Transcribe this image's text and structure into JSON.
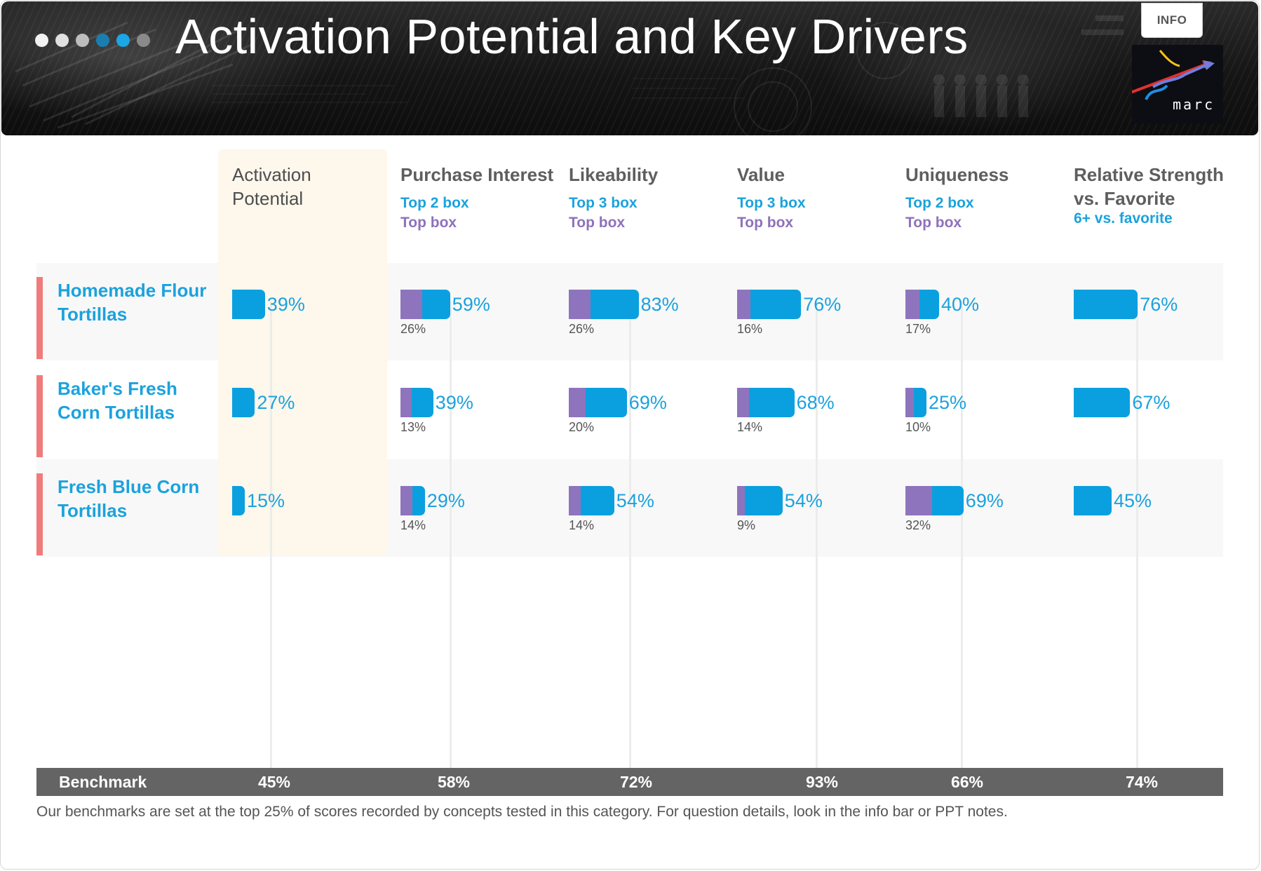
{
  "header": {
    "title": "Activation Potential and Key Drivers",
    "info_label": "INFO",
    "logo_text": "marc",
    "dots": [
      "#f2f2f2",
      "#e0e0e0",
      "#bdbdbd",
      "#1a7fb0",
      "#1ba6e5",
      "#8a8a8a"
    ]
  },
  "colors": {
    "primary_bar": "#0aa0df",
    "top_box_bar": "#8e74bd",
    "row_accent": "#f07b7b",
    "activation_highlight": "#fdf7ec",
    "benchmark_bar": "#646464"
  },
  "chart_data": {
    "type": "bar",
    "orientation": "horizontal",
    "categories": [
      "Homemade Flour\nTortillas",
      "Baker's Fresh\nCorn Tortillas",
      "Fresh Blue Corn\nTortillas"
    ],
    "columns": [
      {
        "key": "activation",
        "title": "Activation\nPotential",
        "sub1": "",
        "sub2": "",
        "values": [
          39,
          27,
          15
        ],
        "top_values": null,
        "benchmark": 45
      },
      {
        "key": "purchase",
        "title": "Purchase Interest",
        "sub1": "Top 2 box",
        "sub2": "Top box",
        "values": [
          59,
          39,
          29
        ],
        "top_values": [
          26,
          13,
          14
        ],
        "benchmark": 58
      },
      {
        "key": "likeability",
        "title": "Likeability",
        "sub1": "Top 3 box",
        "sub2": "Top box",
        "values": [
          83,
          69,
          54
        ],
        "top_values": [
          26,
          20,
          14
        ],
        "benchmark": 72
      },
      {
        "key": "value",
        "title": "Value",
        "sub1": "Top 3 box",
        "sub2": "Top box",
        "values": [
          76,
          68,
          54
        ],
        "top_values": [
          16,
          14,
          9
        ],
        "benchmark": 93
      },
      {
        "key": "uniqueness",
        "title": "Uniqueness",
        "sub1": "Top 2 box",
        "sub2": "Top box",
        "values": [
          40,
          25,
          69
        ],
        "top_values": [
          17,
          10,
          32
        ],
        "benchmark": 66
      },
      {
        "key": "relative",
        "title": "Relative Strength\nvs. Favorite",
        "sub1": "6+ vs. favorite",
        "sub2": "",
        "values": [
          76,
          67,
          45
        ],
        "top_values": null,
        "benchmark": 74
      }
    ],
    "value_suffix": "%",
    "benchmark_label": "Benchmark",
    "xlim": [
      0,
      100
    ]
  },
  "footnote": "Our benchmarks are set at the top 25% of scores recorded by concepts tested in this category. For question details, look in the info bar or PPT notes."
}
